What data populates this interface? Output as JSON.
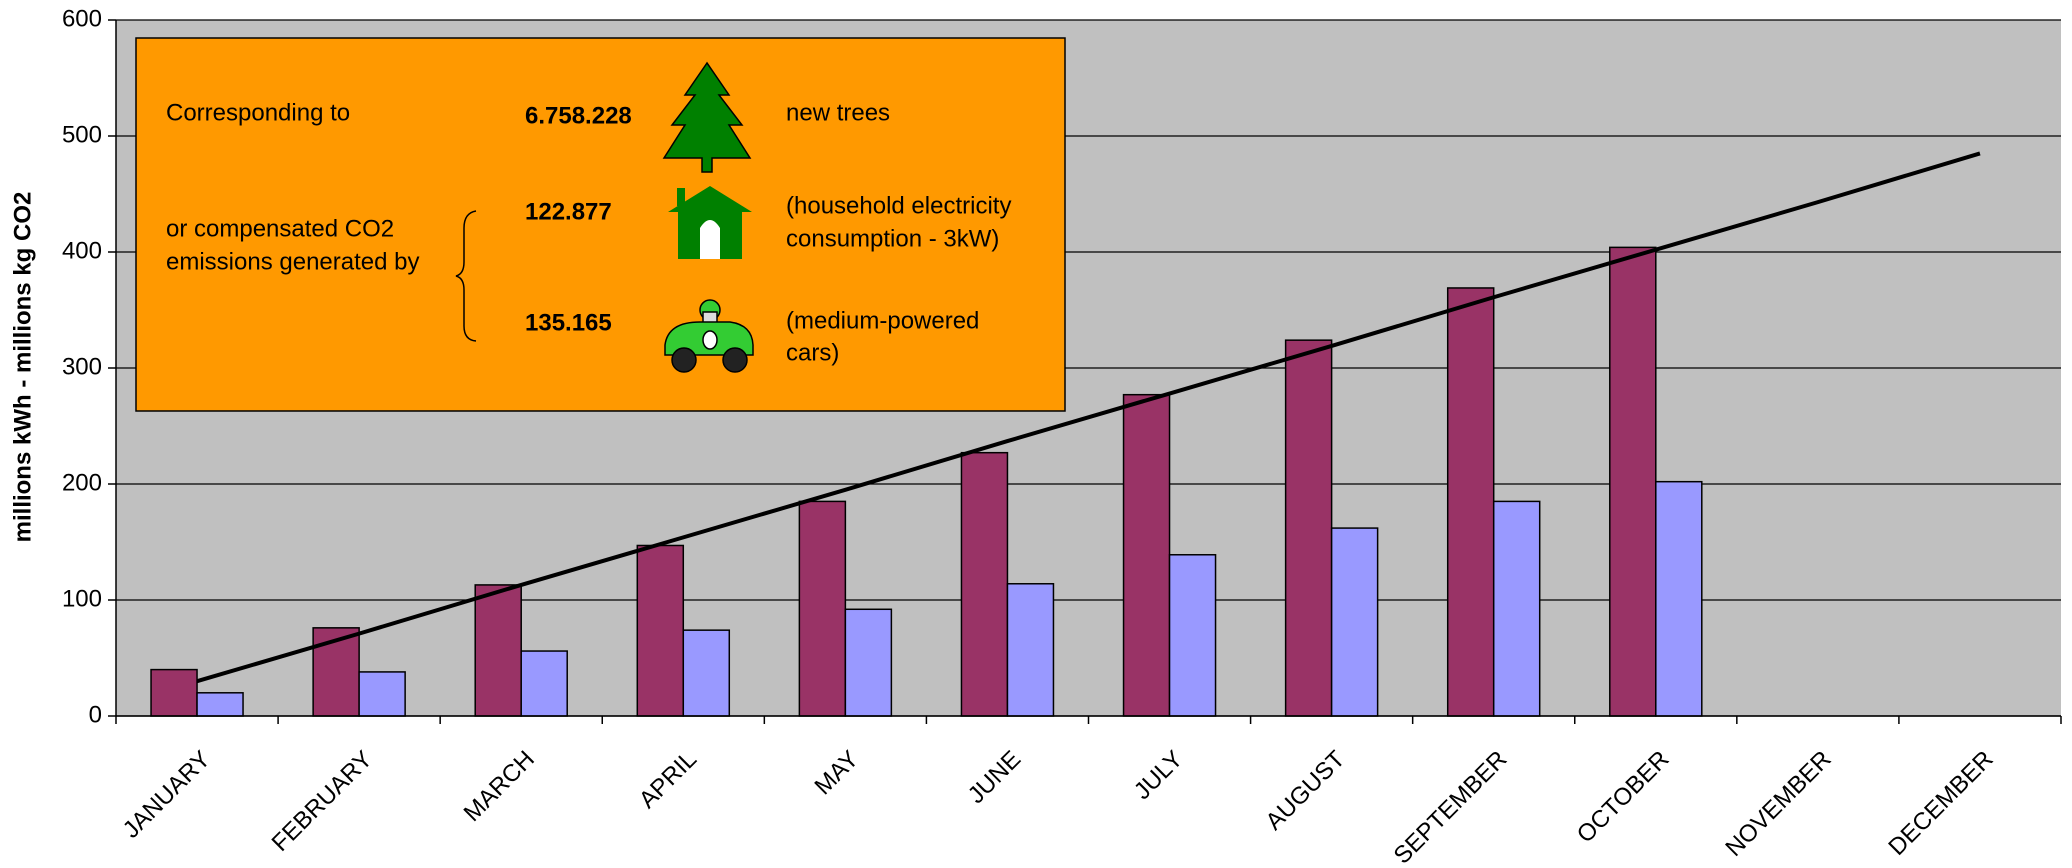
{
  "chart_data": {
    "type": "bar",
    "y_label": "millions kWh - millions kg CO2",
    "categories": [
      "JANUARY",
      "FEBRUARY",
      "MARCH",
      "APRIL",
      "MAY",
      "JUNE",
      "JULY",
      "AUGUST",
      "SEPTEMBER",
      "OCTOBER",
      "NOVEMBER",
      "DECEMBER"
    ],
    "series": [
      {
        "type": "bar",
        "color": "#993366",
        "values": [
          40,
          76,
          113,
          147,
          185,
          227,
          277,
          324,
          369,
          404,
          null,
          null
        ]
      },
      {
        "type": "bar",
        "color": "#9999ff",
        "values": [
          20,
          38,
          56,
          74,
          92,
          114,
          139,
          162,
          185,
          202,
          null,
          null
        ]
      },
      {
        "type": "line",
        "color": "#000000",
        "values": [
          30,
          71,
          113,
          154,
          195,
          237,
          278,
          319,
          361,
          402,
          443,
          485
        ]
      }
    ],
    "ylim": [
      0,
      600
    ],
    "yticks": [
      0,
      100,
      200,
      300,
      400,
      500,
      600
    ],
    "grid": true,
    "plot_background": "#c0c0c0",
    "info_box": {
      "color": "#ff9900",
      "intro": "Corresponding to",
      "or_text": [
        "or compensated CO2",
        "emissions generated by"
      ],
      "items": [
        {
          "number": "6.758.228",
          "label": [
            "new trees"
          ]
        },
        {
          "number": "122.877",
          "label": [
            "(household electricity",
            "consumption - 3kW)"
          ]
        },
        {
          "number": "135.165",
          "label": [
            "(medium-powered",
            "cars)"
          ]
        }
      ]
    }
  }
}
